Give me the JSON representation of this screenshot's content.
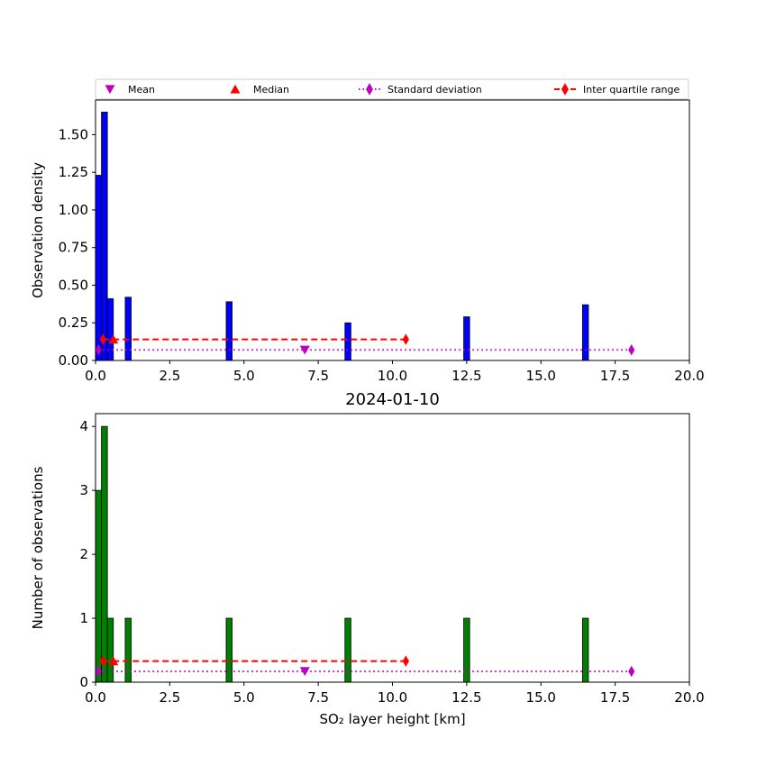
{
  "legend": {
    "entries": [
      {
        "key": "mean",
        "label": "Mean",
        "color": "#bf00bf",
        "marker": "triangle-down"
      },
      {
        "key": "median",
        "label": "Median",
        "color": "#ff0000",
        "marker": "triangle-up"
      },
      {
        "key": "std",
        "label": "Standard deviation",
        "color": "#bf00bf",
        "marker": "diamond",
        "line": "dotted"
      },
      {
        "key": "iqr",
        "label": "Inter quartile range",
        "color": "#ff0000",
        "marker": "diamond",
        "line": "dashed"
      }
    ]
  },
  "chart_data": [
    {
      "type": "bar",
      "title": "",
      "xlabel": "",
      "ylabel": "Observation density",
      "xlim": [
        0,
        20
      ],
      "ylim": [
        0,
        1.73
      ],
      "xticks": [
        "0.0",
        "2.5",
        "5.0",
        "7.5",
        "10.0",
        "12.5",
        "15.0",
        "17.5",
        "20.0"
      ],
      "xtick_values": [
        0,
        2.5,
        5,
        7.5,
        10,
        12.5,
        15,
        17.5,
        20
      ],
      "yticks": [
        "0.00",
        "0.25",
        "0.50",
        "0.75",
        "1.00",
        "1.25",
        "1.50"
      ],
      "ytick_values": [
        0,
        0.25,
        0.5,
        0.75,
        1.0,
        1.25,
        1.5
      ],
      "bar_color": "#0000ff",
      "bar_width": 0.2,
      "bars": [
        {
          "x": 0.1,
          "value": 1.23
        },
        {
          "x": 0.3,
          "value": 1.65
        },
        {
          "x": 0.5,
          "value": 0.41
        },
        {
          "x": 1.1,
          "value": 0.42
        },
        {
          "x": 4.5,
          "value": 0.39
        },
        {
          "x": 8.5,
          "value": 0.25
        },
        {
          "x": 12.5,
          "value": 0.29
        },
        {
          "x": 16.5,
          "value": 0.37
        }
      ],
      "mean": {
        "x": 7.05,
        "y": 0.07
      },
      "median": {
        "x": 0.6,
        "y": 0.14
      },
      "std": {
        "x": [
          0.1,
          18.05
        ],
        "y": 0.07
      },
      "iqr": {
        "x": [
          0.25,
          10.45
        ],
        "y": 0.14
      }
    },
    {
      "type": "bar",
      "title": "2024-01-10",
      "xlabel": "SO₂ layer height [km]",
      "ylabel": "Number of observations",
      "xlim": [
        0,
        20
      ],
      "ylim": [
        0,
        4.2
      ],
      "xticks": [
        "0.0",
        "2.5",
        "5.0",
        "7.5",
        "10.0",
        "12.5",
        "15.0",
        "17.5",
        "20.0"
      ],
      "xtick_values": [
        0,
        2.5,
        5,
        7.5,
        10,
        12.5,
        15,
        17.5,
        20
      ],
      "yticks": [
        "0",
        "1",
        "2",
        "3",
        "4"
      ],
      "ytick_values": [
        0,
        1,
        2,
        3,
        4
      ],
      "bar_color": "#008000",
      "bar_width": 0.2,
      "bars": [
        {
          "x": 0.1,
          "value": 3
        },
        {
          "x": 0.3,
          "value": 4
        },
        {
          "x": 0.5,
          "value": 1
        },
        {
          "x": 1.1,
          "value": 1
        },
        {
          "x": 4.5,
          "value": 1
        },
        {
          "x": 8.5,
          "value": 1
        },
        {
          "x": 12.5,
          "value": 1
        },
        {
          "x": 16.5,
          "value": 1
        }
      ],
      "mean": {
        "x": 7.05,
        "y": 0.17
      },
      "median": {
        "x": 0.6,
        "y": 0.33
      },
      "std": {
        "x": [
          0.1,
          18.05
        ],
        "y": 0.17
      },
      "iqr": {
        "x": [
          0.25,
          10.45
        ],
        "y": 0.33
      }
    }
  ]
}
